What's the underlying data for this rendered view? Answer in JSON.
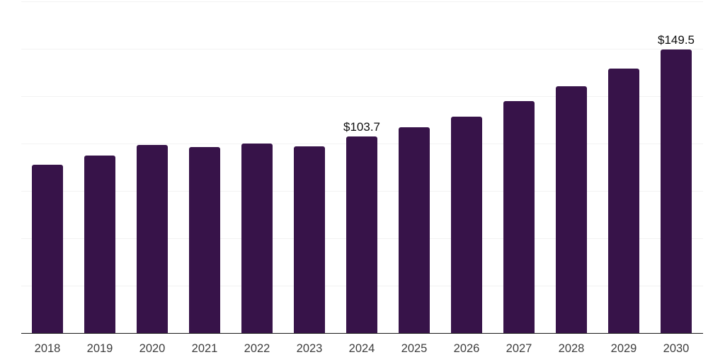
{
  "chart_data": {
    "type": "bar",
    "title": "",
    "xlabel": "",
    "ylabel": "",
    "categories": [
      "2018",
      "2019",
      "2020",
      "2021",
      "2022",
      "2023",
      "2024",
      "2025",
      "2026",
      "2027",
      "2028",
      "2029",
      "2030"
    ],
    "values": [
      88.8,
      93.7,
      99.2,
      98.0,
      100.0,
      98.5,
      103.7,
      108.5,
      114.3,
      122.4,
      130.2,
      139.6,
      149.5
    ],
    "value_labels": {
      "2024": "$103.7",
      "2030": "$149.5"
    },
    "ylim": [
      0,
      175
    ],
    "gridline_step": 25,
    "grid": "horizontal-only",
    "legend_position": "none",
    "y_tick_labels_shown": false,
    "bar_color": "#371349",
    "axis_line_color": "#1a1a1a",
    "gridline_color": "#f2f2f2",
    "value_label_color": "#0d0d0d",
    "tick_label_color": "#3d3d3d",
    "background_color": "#ffffff"
  }
}
